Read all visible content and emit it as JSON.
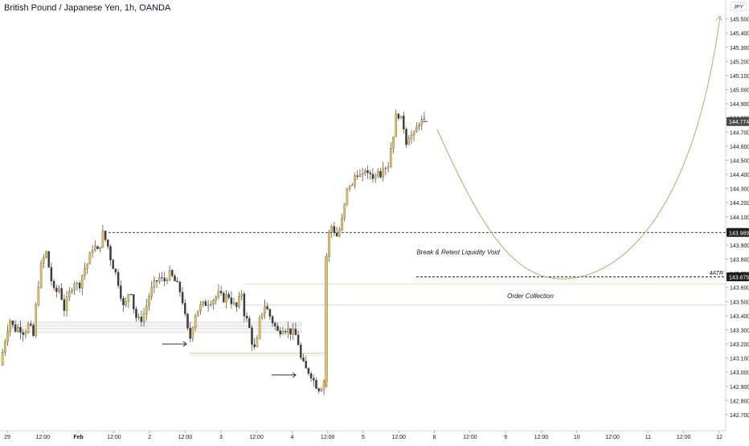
{
  "chart_data": {
    "type": "candlestick",
    "title": "British Pound / Japanese Yen, 1h, OANDA",
    "currency_label": "JPY",
    "ylim": [
      142.62,
      145.6
    ],
    "y_ticks": [
      "145.500",
      "145.400",
      "145.300",
      "145.200",
      "145.100",
      "145.000",
      "144.900",
      "144.800",
      "144.700",
      "144.600",
      "144.500",
      "144.400",
      "144.300",
      "144.200",
      "144.100",
      "144.000",
      "143.900",
      "143.800",
      "143.700",
      "143.600",
      "143.500",
      "143.400",
      "143.300",
      "143.200",
      "143.100",
      "143.000",
      "142.900",
      "142.800",
      "142.700"
    ],
    "x_ticks": [
      "29",
      "12:00",
      "Feb",
      "12:00",
      "2",
      "12:00",
      "3",
      "12:00",
      "4",
      "12:00",
      "5",
      "12:00",
      "8",
      "12:00",
      "9",
      "12:00",
      "10",
      "12:00",
      "11",
      "12:00",
      "12"
    ],
    "price_labels": [
      {
        "text": "144.774",
        "value": 144.774,
        "style": "current"
      },
      {
        "text": "143.989",
        "value": 143.989,
        "style": "dark"
      },
      {
        "text": "143.675",
        "value": 143.675,
        "style": "dark"
      }
    ],
    "annotations": [
      {
        "name": "break-retest-label",
        "text": "Break & Retest Liquidity Void",
        "value": 143.85
      },
      {
        "name": "atr-label",
        "text": "4ATR",
        "value": 143.705
      },
      {
        "name": "order-collection-label",
        "text": "Order Collection",
        "value": 143.54
      }
    ],
    "levels": [
      {
        "name": "dashed-level-high",
        "value": 143.989,
        "style": "dashed"
      },
      {
        "name": "dashed-level-atr",
        "value": 143.675,
        "style": "dashed"
      },
      {
        "name": "zone-line-top",
        "value": 143.625,
        "style": "solid"
      },
      {
        "name": "zone-line-bottom",
        "value": 143.475,
        "style": "solid"
      }
    ],
    "colors": {
      "bull": "#f0c050",
      "bear": "#3d3d3d",
      "projection": "#b8aa70",
      "level": "#2a2a2a"
    }
  }
}
